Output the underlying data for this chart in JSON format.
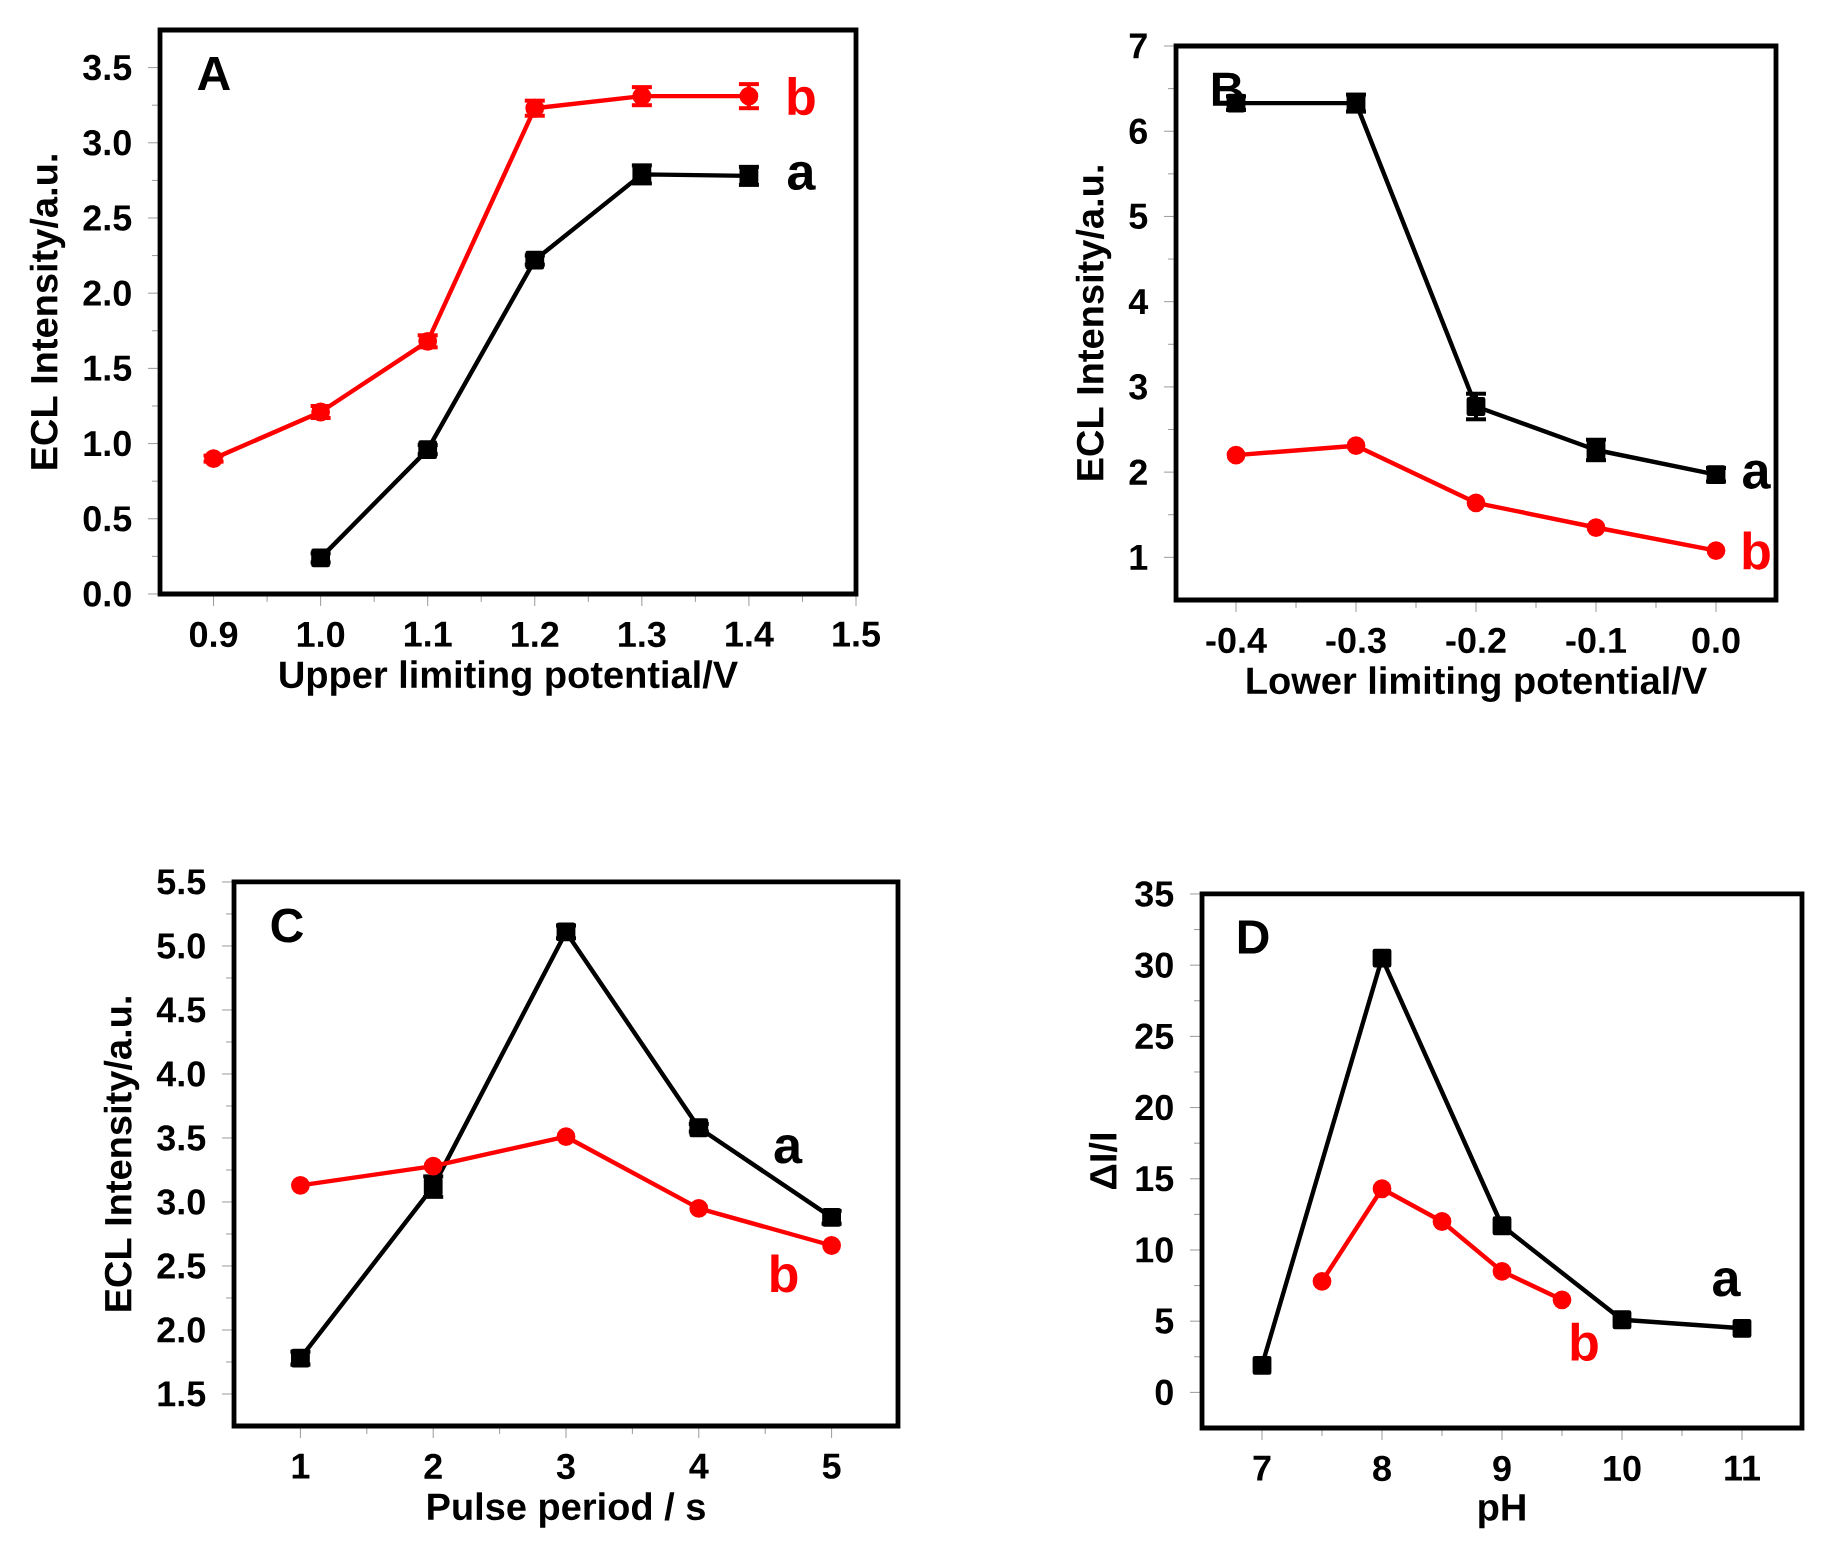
{
  "chart_data": [
    {
      "type": "line",
      "title": "A",
      "xlabel": "Upper limiting potential/V",
      "ylabel": "ECL Intensity/a.u.",
      "xlim": [
        0.85,
        1.5
      ],
      "ylim": [
        0,
        3.75
      ],
      "xticks": [
        0.9,
        {
          "value": 1,
          "label": "1.0"
        },
        1.1,
        1.2,
        1.3,
        1.4,
        1.5
      ],
      "yticks": [
        {
          "value": 0,
          "label": "0.0"
        },
        0.5,
        {
          "value": 1,
          "label": "1.0"
        },
        1.5,
        {
          "value": 2,
          "label": "2.0"
        },
        2.5,
        {
          "value": 3,
          "label": "3.0"
        },
        3.5
      ],
      "series": [
        {
          "name": "a",
          "color": "#000000",
          "marker": "square",
          "x": [
            1.0,
            1.1,
            1.2,
            1.3,
            1.4
          ],
          "values": [
            0.24,
            0.96,
            2.22,
            2.79,
            2.78
          ],
          "errors": [
            0.03,
            0.03,
            0.03,
            0.06,
            0.06
          ]
        },
        {
          "name": "b",
          "color": "#ff0000",
          "marker": "circle",
          "x": [
            0.9,
            1.0,
            1.1,
            1.2,
            1.3,
            1.4
          ],
          "values": [
            0.9,
            1.21,
            1.68,
            3.23,
            3.31,
            3.31
          ],
          "errors": [
            0.02,
            0.04,
            0.04,
            0.05,
            0.06,
            0.08
          ]
        }
      ]
    },
    {
      "type": "line",
      "title": "B",
      "xlabel": "Lower limiting potential/V",
      "ylabel": "ECL Intensity/a.u.",
      "xlim": [
        -0.45,
        0.05
      ],
      "ylim": [
        0.5,
        7
      ],
      "xticks": [
        -0.4,
        -0.3,
        -0.2,
        -0.1,
        {
          "value": 0,
          "label": "0.0"
        }
      ],
      "yticks": [
        1,
        2,
        3,
        4,
        5,
        6,
        7
      ],
      "series": [
        {
          "name": "a",
          "color": "#000000",
          "marker": "square",
          "x": [
            -0.4,
            -0.3,
            -0.2,
            -0.1,
            0.0
          ],
          "values": [
            6.33,
            6.33,
            2.77,
            2.26,
            1.97
          ],
          "errors": [
            0.08,
            0.1,
            0.15,
            0.12,
            0.08
          ]
        },
        {
          "name": "b",
          "color": "#ff0000",
          "marker": "circle",
          "x": [
            -0.4,
            -0.3,
            -0.2,
            -0.1,
            0.0
          ],
          "values": [
            2.2,
            2.31,
            1.64,
            1.35,
            1.08
          ]
        }
      ]
    },
    {
      "type": "line",
      "title": "C",
      "xlabel": "Pulse period / s",
      "ylabel": "ECL Intensity/a.u.",
      "xlim": [
        0.5,
        5.5
      ],
      "ylim": [
        1.25,
        5.5
      ],
      "xticks": [
        1,
        2,
        3,
        4,
        5
      ],
      "yticks": [
        1.5,
        {
          "value": 2,
          "label": "2.0"
        },
        2.5,
        {
          "value": 3,
          "label": "3.0"
        },
        3.5,
        {
          "value": 4,
          "label": "4.0"
        },
        4.5,
        {
          "value": 5,
          "label": "5.0"
        },
        5.5
      ],
      "series": [
        {
          "name": "a",
          "color": "#000000",
          "marker": "square",
          "x": [
            1,
            2,
            3,
            4,
            5
          ],
          "values": [
            1.78,
            3.12,
            5.11,
            3.58,
            2.88
          ],
          "errors": [
            0.05,
            0.08,
            0.05,
            0.03,
            0.05
          ]
        },
        {
          "name": "b",
          "color": "#ff0000",
          "marker": "circle",
          "x": [
            1,
            2,
            3,
            4,
            5
          ],
          "values": [
            3.13,
            3.28,
            3.51,
            2.95,
            2.66
          ]
        }
      ]
    },
    {
      "type": "line",
      "title": "D",
      "xlabel": "pH",
      "ylabel": "ΔI/I",
      "xlim": [
        6.5,
        11.5
      ],
      "ylim": [
        -2.5,
        35
      ],
      "xticks": [
        7,
        8,
        9,
        10,
        11
      ],
      "yticks": [
        0,
        5,
        10,
        15,
        20,
        25,
        30,
        35
      ],
      "series": [
        {
          "name": "a",
          "color": "#000000",
          "marker": "square",
          "x": [
            7,
            8,
            9,
            10,
            11
          ],
          "values": [
            1.9,
            30.5,
            11.7,
            5.1,
            4.5
          ]
        },
        {
          "name": "b",
          "color": "#ff0000",
          "marker": "circle",
          "x": [
            7.5,
            8,
            8.5,
            9,
            9.5
          ],
          "values": [
            7.8,
            14.3,
            12.0,
            8.5,
            6.5
          ]
        }
      ]
    }
  ]
}
